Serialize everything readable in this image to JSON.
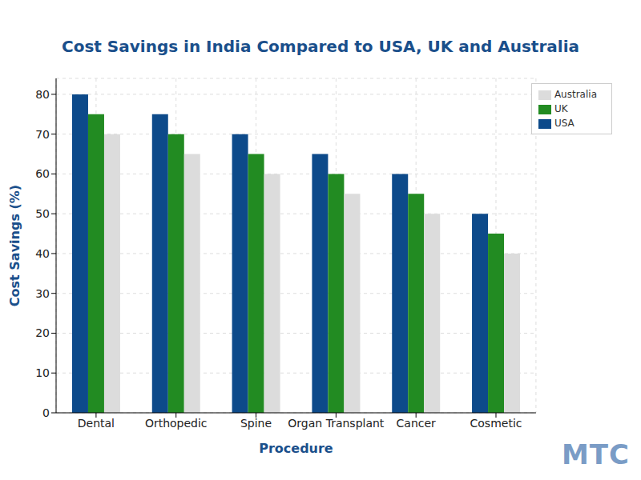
{
  "chart_data": {
    "type": "bar",
    "title": "Cost Savings in India Compared to USA, UK and Australia",
    "x_label": "Procedure",
    "y_label": "Cost Savings (%)",
    "watermark": "MTC",
    "categories": [
      "Dental",
      "Orthopedic",
      "Spine",
      "Organ Transplant",
      "Cancer",
      "Cosmetic"
    ],
    "series": [
      {
        "name": "USA",
        "color": "#0d4a8a",
        "values": [
          80,
          75,
          70,
          65,
          60,
          50
        ]
      },
      {
        "name": "UK",
        "color": "#228b22",
        "values": [
          75,
          70,
          65,
          60,
          55,
          45
        ]
      },
      {
        "name": "Australia",
        "color": "#dcdcdc",
        "values": [
          70,
          65,
          60,
          55,
          50,
          40
        ]
      }
    ],
    "ylim": [
      0,
      84
    ],
    "yticks": [
      0,
      10,
      20,
      30,
      40,
      50,
      60,
      70,
      80
    ],
    "grid": true,
    "legend": "upper right"
  }
}
